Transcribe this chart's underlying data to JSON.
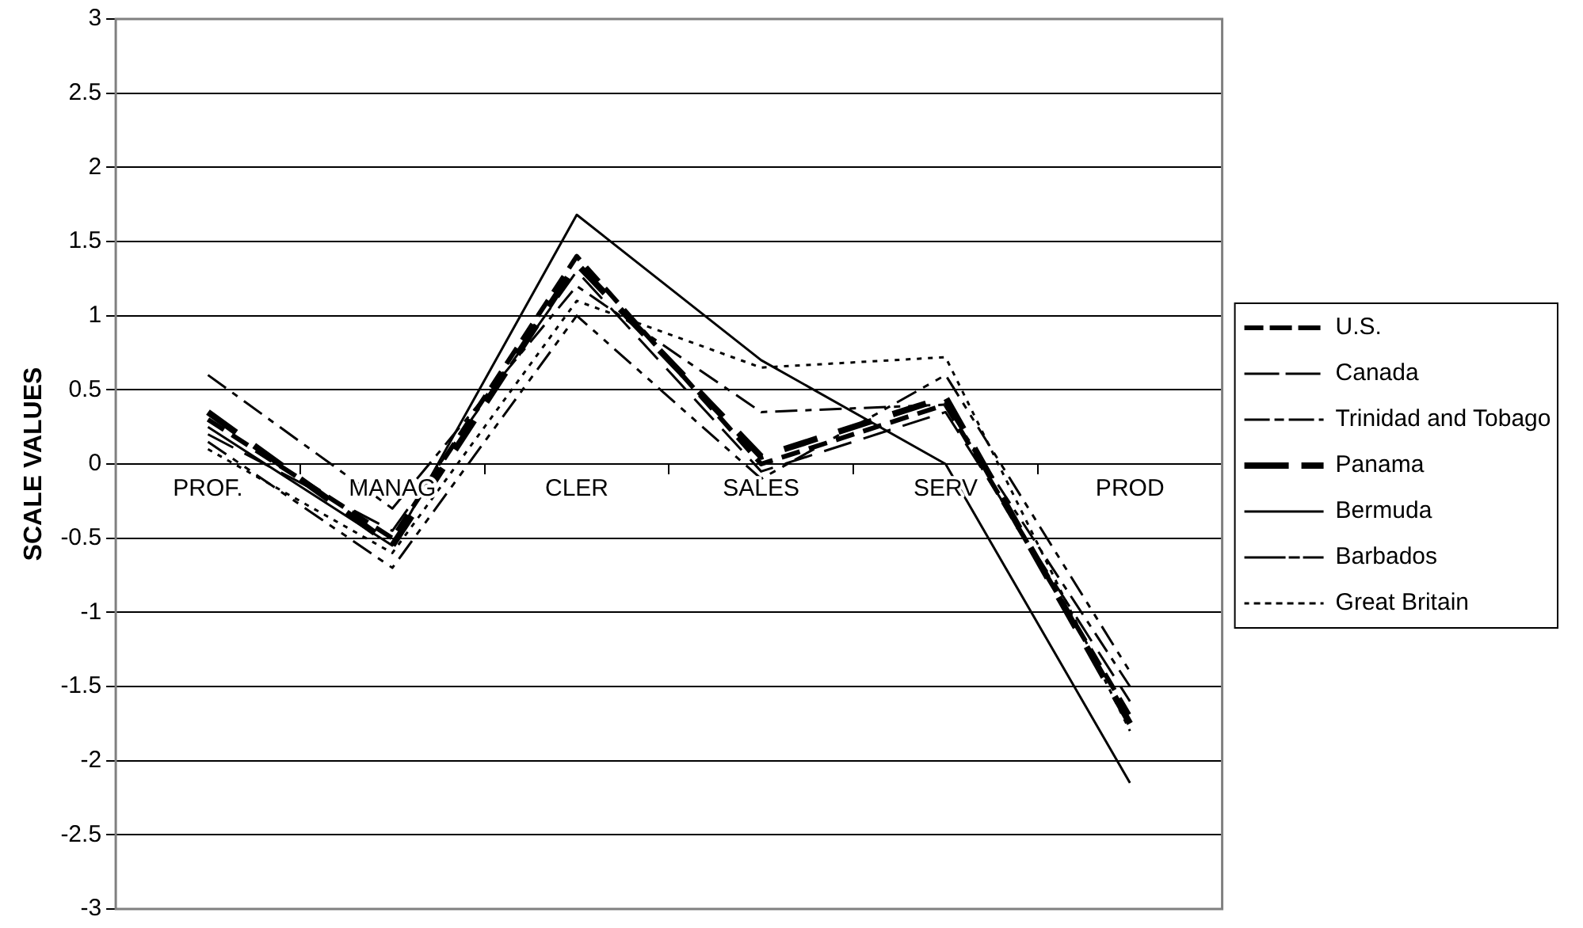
{
  "chart_data": {
    "type": "line",
    "ylabel": "SCALE VALUES",
    "categories": [
      "PROF.",
      "MANAG",
      "CLER",
      "SALES",
      "SERV",
      "PROD"
    ],
    "ylim": [
      -3,
      3
    ],
    "yticks": [
      -3,
      -2.5,
      -2,
      -1.5,
      -1,
      -0.5,
      0,
      0.5,
      1,
      1.5,
      2,
      2.5,
      3
    ],
    "grid": "y",
    "legend": "right",
    "marker": "none",
    "series": [
      {
        "name": "U.S.",
        "color": "#000000",
        "line_style": "dashed",
        "values": [
          0.3,
          -0.5,
          1.4,
          0.0,
          0.4,
          -1.7
        ]
      },
      {
        "name": "Canada",
        "color": "#000000",
        "line_style": "dashed",
        "values": [
          0.2,
          -0.45,
          1.3,
          -0.05,
          0.35,
          -1.6
        ]
      },
      {
        "name": "Trinidad and Tobago",
        "color": "#000000",
        "line_style": "dashed",
        "values": [
          0.6,
          -0.3,
          1.2,
          0.35,
          0.4,
          -1.5
        ]
      },
      {
        "name": "Panama",
        "color": "#000000",
        "line_style": "dashed",
        "values": [
          0.35,
          -0.55,
          1.35,
          0.05,
          0.45,
          -1.75
        ]
      },
      {
        "name": "Bermuda",
        "color": "#000000",
        "line_style": "solid",
        "values": [
          0.25,
          -0.55,
          1.68,
          0.7,
          0.0,
          -2.15
        ]
      },
      {
        "name": "Barbados",
        "color": "#000000",
        "line_style": "dashed",
        "values": [
          0.15,
          -0.7,
          1.0,
          -0.1,
          0.6,
          -1.4
        ]
      },
      {
        "name": "Great Britain",
        "color": "#000000",
        "line_style": "dotted",
        "values": [
          0.1,
          -0.6,
          1.1,
          0.65,
          0.72,
          -1.8
        ]
      }
    ]
  }
}
